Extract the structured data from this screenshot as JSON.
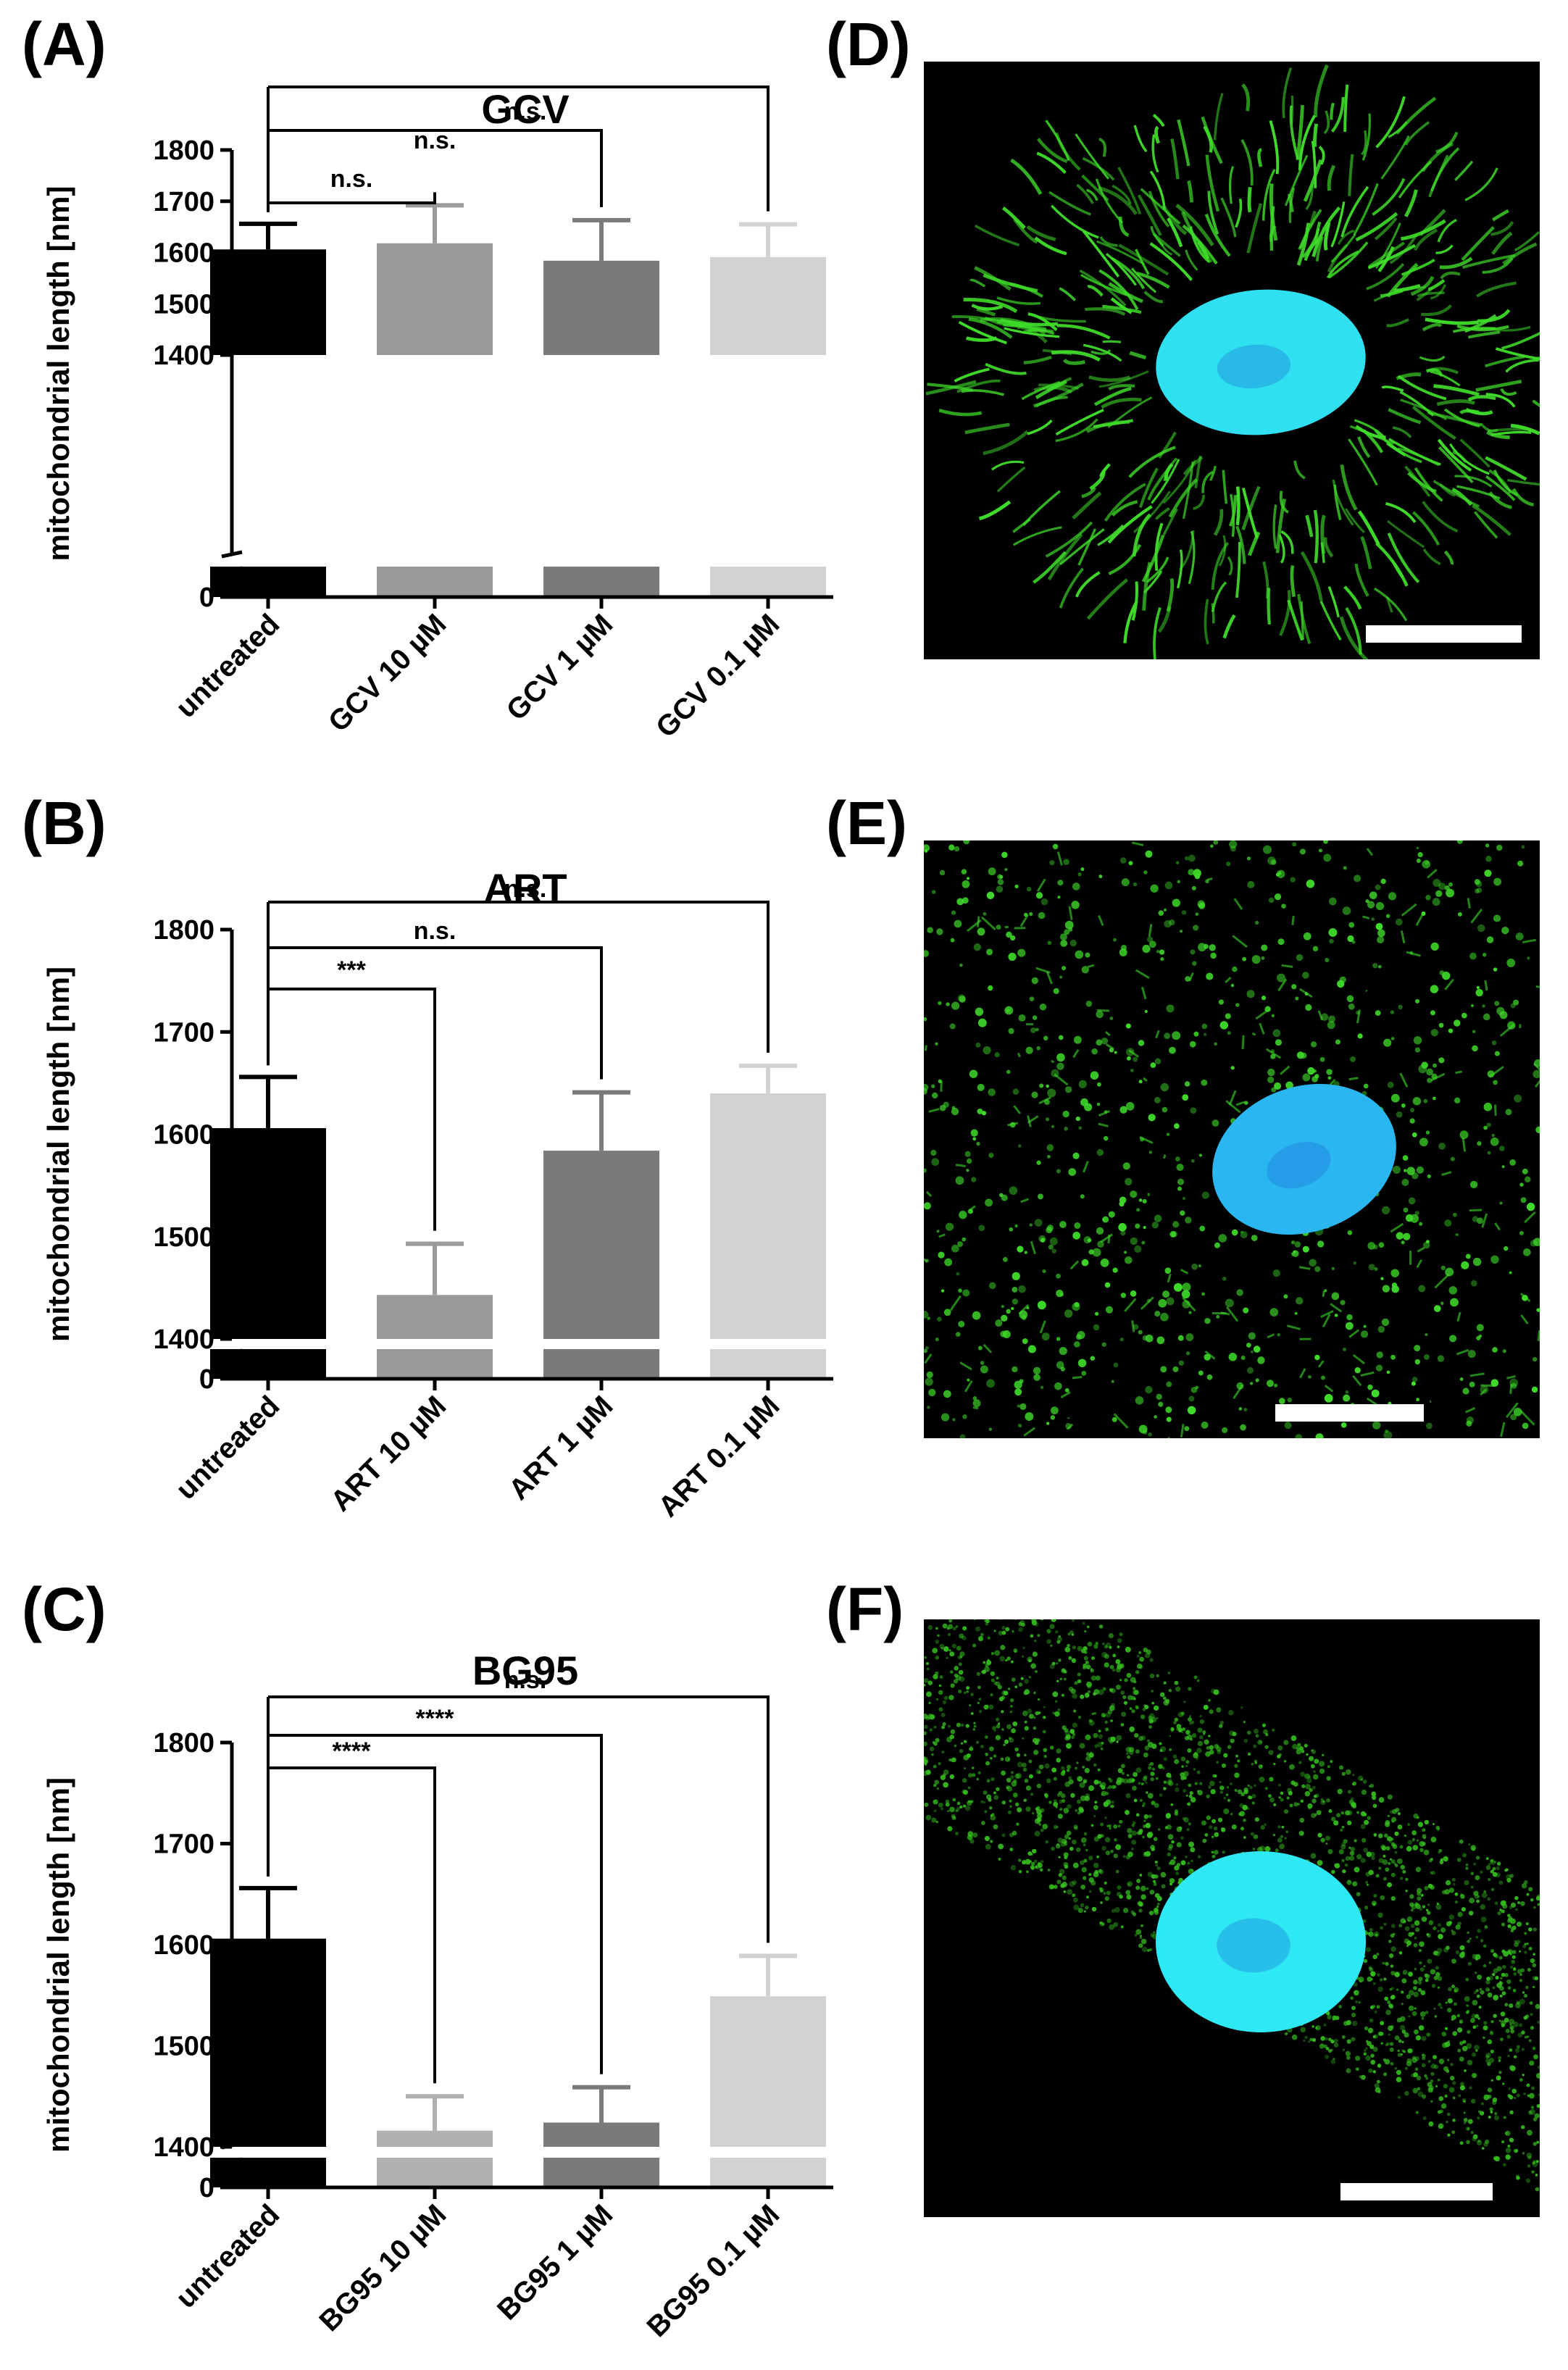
{
  "chart_data": [
    {
      "panel": "(A)",
      "type": "bar",
      "title": "GCV",
      "ylabel": "mitochondrial length [nm]",
      "categories": [
        "untreated",
        "GCV 10 µM",
        "GCV 1 µM",
        "GCV 0.1 µM"
      ],
      "values": [
        1606,
        1618,
        1584,
        1591
      ],
      "errors": [
        50,
        74,
        79,
        64
      ],
      "bar_colors": [
        "#000000",
        "#9a9a9a",
        "#7a7a7a",
        "#d2d2d2"
      ],
      "yticks": [
        "1400",
        "1500",
        "1600",
        "1700",
        "1800"
      ],
      "ylim": [
        1400,
        1800
      ],
      "axis_break_zero": "0",
      "significance": [
        "n.s.",
        "n.s.",
        "n.s."
      ]
    },
    {
      "panel": "(B)",
      "type": "bar",
      "title": "ART",
      "ylabel": "mitochondrial length [nm]",
      "categories": [
        "untreated",
        "ART 10 µM",
        "ART 1 µM",
        "ART 0.1 µM"
      ],
      "values": [
        1606,
        1443,
        1584,
        1640
      ],
      "errors": [
        50,
        50,
        57,
        27
      ],
      "bar_colors": [
        "#000000",
        "#9a9a9a",
        "#7a7a7a",
        "#d2d2d2"
      ],
      "yticks": [
        "1400",
        "1500",
        "1600",
        "1700",
        "1800"
      ],
      "ylim": [
        1400,
        1800
      ],
      "axis_break_zero": "0",
      "significance": [
        "***",
        "n.s.",
        "n.s."
      ]
    },
    {
      "panel": "(C)",
      "type": "bar",
      "title": "BG95",
      "ylabel": "mitochondrial length [nm]",
      "categories": [
        "untreated",
        "BG95 10 µM",
        "BG95 1 µM",
        "BG95 0.1 µM"
      ],
      "values": [
        1606,
        1416,
        1424,
        1549
      ],
      "errors": [
        50,
        34,
        35,
        40
      ],
      "bar_colors": [
        "#000000",
        "#b0b0b0",
        "#7a7a7a",
        "#d2d2d2"
      ],
      "yticks": [
        "1400",
        "1500",
        "1600",
        "1700",
        "1800"
      ],
      "ylim": [
        1400,
        1800
      ],
      "axis_break_zero": "0",
      "significance": [
        "****",
        "****",
        "n.s."
      ]
    }
  ],
  "images": [
    {
      "panel": "(D)",
      "nucleus_color": "#2ee0f0",
      "mito_color": "#3fdc2a",
      "pattern": "filamentous"
    },
    {
      "panel": "(E)",
      "nucleus_color": "#2ab6f0",
      "mito_color": "#3fdc2a",
      "pattern": "punctate"
    },
    {
      "panel": "(F)",
      "nucleus_color": "#2ee8f4",
      "mito_color": "#36c21f",
      "pattern": "fragmented"
    }
  ]
}
